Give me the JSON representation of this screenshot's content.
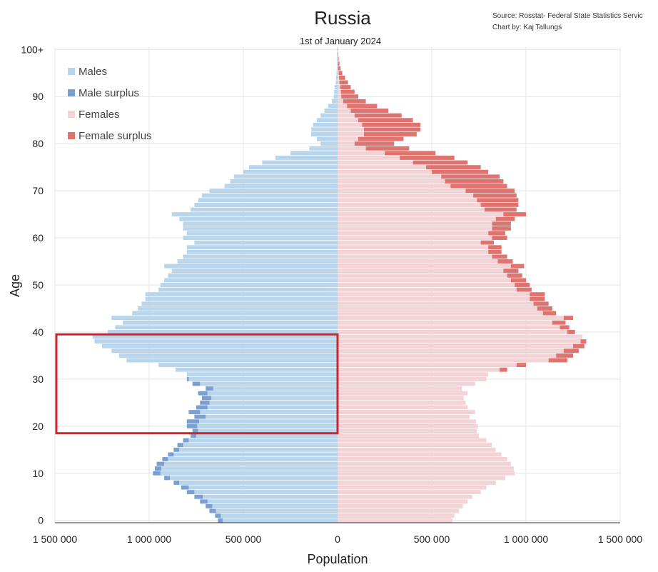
{
  "chart_data": {
    "type": "bar",
    "subtype": "population-pyramid",
    "title": "Russia",
    "subtitle": "1st of January 2024",
    "source_line1": "Source: Rosstat- Federal State Statistics Servic",
    "source_line2": "Chart by: Kaj Tallungs",
    "xlabel": "Population",
    "ylabel": "Age",
    "xlim": [
      -1500000,
      1500000
    ],
    "x_tick_labels": [
      "1 500 000",
      "1 000 000",
      "500 000",
      "0",
      "500 000",
      "1 000 000",
      "1 500 000"
    ],
    "x_tick_values": [
      -1500000,
      -1000000,
      -500000,
      0,
      500000,
      1000000,
      1500000
    ],
    "y_tick_labels": [
      "0",
      "10",
      "20",
      "30",
      "40",
      "50",
      "60",
      "70",
      "80",
      "90",
      "100+"
    ],
    "y_tick_values": [
      0,
      10,
      20,
      30,
      40,
      50,
      60,
      70,
      80,
      90,
      100
    ],
    "grid": true,
    "legend": [
      "Males",
      "Male surplus",
      "Females",
      "Female surplus"
    ],
    "legend_position": "top-left",
    "colors": {
      "males": "#b8d5ec",
      "male_surplus": "#7b9fd0",
      "females": "#f2d3d6",
      "female_surplus": "#de7370",
      "grid": "#e3e3e3",
      "highlight": "#d0242e"
    },
    "highlight_age_range": [
      19,
      39
    ],
    "ages": [
      0,
      1,
      2,
      3,
      4,
      5,
      6,
      7,
      8,
      9,
      10,
      11,
      12,
      13,
      14,
      15,
      16,
      17,
      18,
      19,
      20,
      21,
      22,
      23,
      24,
      25,
      26,
      27,
      28,
      29,
      30,
      31,
      32,
      33,
      34,
      35,
      36,
      37,
      38,
      39,
      40,
      41,
      42,
      43,
      44,
      45,
      46,
      47,
      48,
      49,
      50,
      51,
      52,
      53,
      54,
      55,
      56,
      57,
      58,
      59,
      60,
      61,
      62,
      63,
      64,
      65,
      66,
      67,
      68,
      69,
      70,
      71,
      72,
      73,
      74,
      75,
      76,
      77,
      78,
      79,
      80,
      81,
      82,
      83,
      84,
      85,
      86,
      87,
      88,
      89,
      90,
      91,
      92,
      93,
      94,
      95,
      96,
      97,
      98,
      99,
      100
    ],
    "series": [
      {
        "name": "Males",
        "values": [
          635000,
          650000,
          680000,
          700000,
          730000,
          760000,
          800000,
          830000,
          870000,
          920000,
          980000,
          970000,
          960000,
          930000,
          900000,
          870000,
          850000,
          820000,
          780000,
          770000,
          800000,
          800000,
          760000,
          790000,
          750000,
          730000,
          720000,
          740000,
          700000,
          770000,
          800000,
          800000,
          860000,
          950000,
          1120000,
          1160000,
          1200000,
          1250000,
          1290000,
          1300000,
          1220000,
          1180000,
          1140000,
          1200000,
          1090000,
          1060000,
          1040000,
          1020000,
          1020000,
          950000,
          940000,
          920000,
          900000,
          880000,
          920000,
          850000,
          820000,
          800000,
          800000,
          760000,
          820000,
          800000,
          820000,
          820000,
          840000,
          880000,
          780000,
          760000,
          740000,
          720000,
          680000,
          600000,
          570000,
          550000,
          500000,
          470000,
          400000,
          330000,
          250000,
          150000,
          90000,
          110000,
          140000,
          140000,
          130000,
          110000,
          90000,
          70000,
          50000,
          30000,
          20000,
          18000,
          15000,
          10000,
          8000,
          6000,
          4000,
          3000,
          2000,
          1500,
          2000
        ]
      },
      {
        "name": "Females",
        "values": [
          610000,
          620000,
          645000,
          665000,
          690000,
          715000,
          760000,
          790000,
          840000,
          890000,
          940000,
          935000,
          920000,
          900000,
          870000,
          840000,
          820000,
          790000,
          750000,
          740000,
          745000,
          735000,
          700000,
          730000,
          690000,
          680000,
          670000,
          690000,
          660000,
          730000,
          790000,
          800000,
          900000,
          1000000,
          1220000,
          1250000,
          1280000,
          1310000,
          1320000,
          1300000,
          1260000,
          1230000,
          1210000,
          1250000,
          1160000,
          1140000,
          1120000,
          1100000,
          1100000,
          1030000,
          1020000,
          1000000,
          980000,
          960000,
          990000,
          930000,
          900000,
          870000,
          870000,
          830000,
          900000,
          890000,
          920000,
          920000,
          940000,
          1000000,
          950000,
          960000,
          960000,
          950000,
          940000,
          900000,
          880000,
          860000,
          800000,
          760000,
          690000,
          620000,
          520000,
          380000,
          300000,
          350000,
          420000,
          440000,
          440000,
          400000,
          340000,
          270000,
          210000,
          150000,
          110000,
          90000,
          70000,
          55000,
          40000,
          25000,
          16000,
          10000,
          6000,
          4000,
          3000
        ]
      }
    ]
  }
}
